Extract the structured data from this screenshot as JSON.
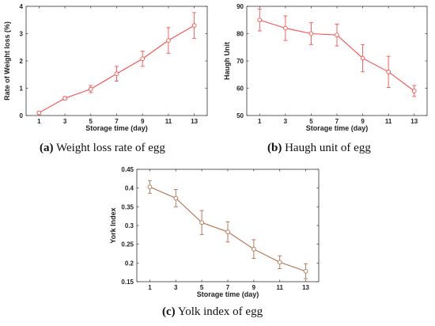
{
  "chart_data": [
    {
      "type": "line",
      "caption_tag": "(a)",
      "caption_text": "Weight loss rate of egg",
      "xlabel": "Storage time (day)",
      "ylabel": "Rate of Weight loss (%)",
      "x": [
        1,
        3,
        5,
        7,
        9,
        11,
        13
      ],
      "x_ticks": [
        "1",
        "3",
        "5",
        "7",
        "9",
        "11",
        "13"
      ],
      "xlim": [
        0,
        14
      ],
      "ylim": [
        0,
        4
      ],
      "y_ticks": [
        "0",
        "1",
        "2",
        "3",
        "4"
      ],
      "series": [
        {
          "values": [
            0.1,
            0.63,
            0.97,
            1.53,
            2.08,
            2.75,
            3.3
          ],
          "errors": [
            0.05,
            0.06,
            0.13,
            0.27,
            0.28,
            0.47,
            0.47
          ],
          "color": "#ff4d4d"
        }
      ]
    },
    {
      "type": "line",
      "caption_tag": "(b)",
      "caption_text": "Haugh unit of egg",
      "xlabel": "Storage time (day)",
      "ylabel": "Haugh Unit",
      "x": [
        1,
        3,
        5,
        7,
        9,
        11,
        13
      ],
      "x_ticks": [
        "1",
        "3",
        "5",
        "7",
        "9",
        "11",
        "13"
      ],
      "xlim": [
        0,
        14
      ],
      "ylim": [
        50,
        90
      ],
      "y_ticks": [
        "50",
        "60",
        "70",
        "80",
        "90"
      ],
      "series": [
        {
          "values": [
            85,
            82,
            80,
            79.5,
            71,
            66,
            59
          ],
          "errors": [
            4,
            4.5,
            4,
            4,
            5,
            5.7,
            2
          ],
          "color": "#ff4d4d"
        }
      ]
    },
    {
      "type": "line",
      "caption_tag": "(c)",
      "caption_text": "Yolk index of egg",
      "xlabel": "Storage time (day)",
      "ylabel": "York Index",
      "x": [
        1,
        3,
        5,
        7,
        9,
        11,
        13
      ],
      "x_ticks": [
        "1",
        "3",
        "5",
        "7",
        "9",
        "11",
        "13"
      ],
      "xlim": [
        0,
        14
      ],
      "ylim": [
        0.15,
        0.45
      ],
      "y_ticks": [
        "0.15",
        "0.2",
        "0.25",
        "0.3",
        "0.35",
        "0.4",
        "0.45"
      ],
      "series": [
        {
          "values": [
            0.403,
            0.373,
            0.308,
            0.283,
            0.237,
            0.202,
            0.178
          ],
          "errors": [
            0.017,
            0.023,
            0.032,
            0.027,
            0.025,
            0.017,
            0.02
          ],
          "color": "#b0704a"
        }
      ]
    }
  ]
}
